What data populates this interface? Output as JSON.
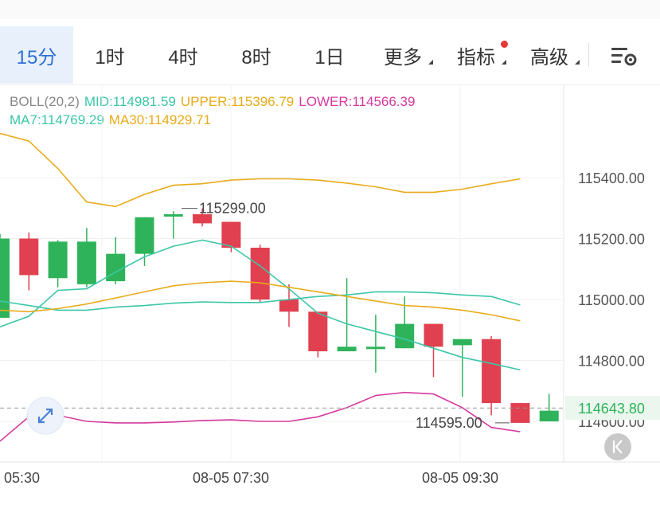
{
  "tabs": [
    {
      "label": "15分",
      "active": true
    },
    {
      "label": "1时"
    },
    {
      "label": "4时"
    },
    {
      "label": "8时"
    },
    {
      "label": "1日"
    },
    {
      "label": "更多",
      "caret": true
    },
    {
      "label": "指标",
      "caret": true,
      "dot": true
    },
    {
      "label": "高级",
      "caret": true
    }
  ],
  "legend": {
    "boll": "BOLL(20,2)",
    "mid": "MID:114981.59",
    "upper": "UPPER:115396.79",
    "lower": "LOWER:114566.39",
    "ma7": "MA7:114769.29",
    "ma30": "MA30:114929.71"
  },
  "colors": {
    "up": "#2eb35a",
    "down": "#e0404f",
    "mid": "#3cc6a8",
    "upper": "#e8ab1a",
    "lower": "#d6399f",
    "ma7": "#3cc6a8",
    "ma30": "#e8ab1a",
    "accent": "#2f6fd6"
  },
  "icons": [
    "settings-icon",
    "expand-icon",
    "back-to-latest-icon"
  ],
  "chart_data": {
    "type": "candlestick",
    "y_ticks": [
      "115400.00",
      "115200.00",
      "115000.00",
      "114800.00",
      "114600.00"
    ],
    "y_range": [
      114480,
      115550
    ],
    "x_labels": [
      "05:30",
      "08-05 07:30",
      "08-05 09:30"
    ],
    "current_price": "114643.80",
    "high_annotation": "115299.00",
    "low_annotation": "114595.00",
    "candles": [
      {
        "o": 114940,
        "h": 115215,
        "l": 114940,
        "c": 115200
      },
      {
        "o": 115200,
        "h": 115220,
        "l": 115030,
        "c": 115080
      },
      {
        "o": 115070,
        "h": 115195,
        "l": 115040,
        "c": 115190
      },
      {
        "o": 115050,
        "h": 115235,
        "l": 115040,
        "c": 115190
      },
      {
        "o": 115060,
        "h": 115205,
        "l": 115050,
        "c": 115150
      },
      {
        "o": 115150,
        "h": 115270,
        "l": 115110,
        "c": 115270
      },
      {
        "o": 115280,
        "h": 115290,
        "l": 115200,
        "c": 115280
      },
      {
        "o": 115280,
        "h": 115299,
        "l": 115240,
        "c": 115250
      },
      {
        "o": 115255,
        "h": 115255,
        "l": 115155,
        "c": 115170
      },
      {
        "o": 115170,
        "h": 115180,
        "l": 114990,
        "c": 115000
      },
      {
        "o": 115000,
        "h": 115050,
        "l": 114910,
        "c": 114960
      },
      {
        "o": 114960,
        "h": 114960,
        "l": 114810,
        "c": 114830
      },
      {
        "o": 114830,
        "h": 115070,
        "l": 114830,
        "c": 114845
      },
      {
        "o": 114840,
        "h": 114950,
        "l": 114760,
        "c": 114845
      },
      {
        "o": 114840,
        "h": 115010,
        "l": 114840,
        "c": 114920
      },
      {
        "o": 114920,
        "h": 114920,
        "l": 114745,
        "c": 114845
      },
      {
        "o": 114850,
        "h": 114870,
        "l": 114680,
        "c": 114870
      },
      {
        "o": 114870,
        "h": 114880,
        "l": 114620,
        "c": 114660
      },
      {
        "o": 114660,
        "h": 114660,
        "l": 114595,
        "c": 114595
      },
      {
        "o": 114600,
        "h": 114690,
        "l": 114600,
        "c": 114635
      }
    ],
    "upper": [
      115545,
      115520,
      115430,
      115320,
      115305,
      115345,
      115375,
      115380,
      115392,
      115396,
      115396,
      115392,
      115382,
      115370,
      115352,
      115352,
      115362,
      115380,
      115396
    ],
    "mid": [
      114995,
      114980,
      114965,
      114965,
      114975,
      114980,
      114988,
      114992,
      114990,
      114990,
      115000,
      115010,
      115015,
      115025,
      115025,
      115022,
      115015,
      115010,
      114982
    ],
    "lower": [
      114535,
      114615,
      114620,
      114600,
      114595,
      114595,
      114598,
      114603,
      114605,
      114600,
      114600,
      114615,
      114645,
      114685,
      114695,
      114690,
      114645,
      114580,
      114566
    ],
    "ma7": [
      114910,
      114945,
      115030,
      115035,
      115090,
      115140,
      115175,
      115195,
      115175,
      115110,
      115035,
      114955,
      114920,
      114895,
      114870,
      114840,
      114810,
      114790,
      114769
    ],
    "ma30": [
      114965,
      114960,
      114970,
      114985,
      115005,
      115025,
      115045,
      115055,
      115060,
      115055,
      115040,
      115025,
      115010,
      114995,
      114980,
      114975,
      114965,
      114950,
      114930
    ]
  }
}
